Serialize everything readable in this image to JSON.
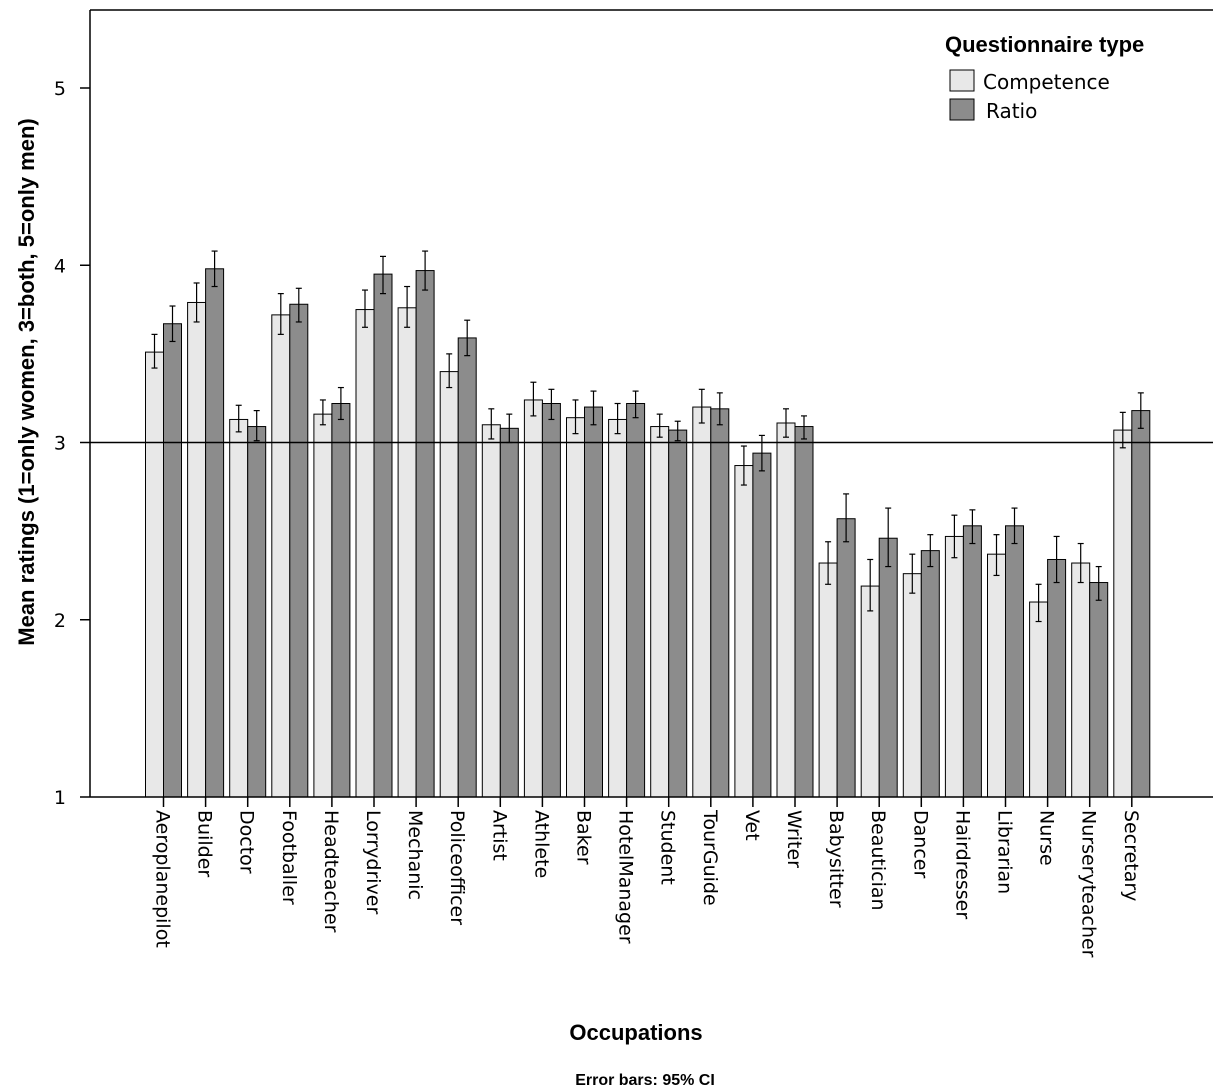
{
  "chart_data": {
    "type": "bar",
    "title": "",
    "xlabel": "Occupations",
    "ylabel": "Mean ratings (1=only women, 3=both, 5=only men)",
    "footnote": "Error bars: 95% CI",
    "ylim": [
      1,
      5.45
    ],
    "yticks": [
      1,
      2,
      3,
      4,
      5
    ],
    "reference_line": 3,
    "grid": false,
    "legend": {
      "title": "Questionnaire type",
      "placement": "top-right"
    },
    "categories": [
      "Aeroplanepilot",
      "Builder",
      "Doctor",
      "Footballer",
      "Headteacher",
      "Lorrydriver",
      "Mechanic",
      "Policeofficer",
      "Artist",
      "Athlete",
      "Baker",
      "HotelManager",
      "Student",
      "TourGuide",
      "Vet",
      "Writer",
      "Babysitter",
      "Beautician",
      "Dancer",
      "Hairdresser",
      "Librarian",
      "Nurse",
      "Nurseryteacher",
      "Secretary"
    ],
    "series": [
      {
        "name": "Competence",
        "color": "#e8e8e8",
        "values": [
          3.51,
          3.79,
          3.13,
          3.72,
          3.16,
          3.75,
          3.76,
          3.4,
          3.1,
          3.24,
          3.14,
          3.13,
          3.09,
          3.2,
          2.87,
          3.11,
          2.32,
          2.19,
          2.26,
          2.47,
          2.37,
          2.1,
          2.32,
          3.07
        ],
        "ci_low": [
          3.42,
          3.68,
          3.06,
          3.61,
          3.1,
          3.65,
          3.65,
          3.31,
          3.02,
          3.15,
          3.05,
          3.05,
          3.03,
          3.11,
          2.76,
          3.03,
          2.2,
          2.05,
          2.15,
          2.35,
          2.25,
          1.99,
          2.21,
          2.97
        ],
        "ci_high": [
          3.61,
          3.9,
          3.21,
          3.84,
          3.24,
          3.86,
          3.88,
          3.5,
          3.19,
          3.34,
          3.24,
          3.22,
          3.16,
          3.3,
          2.98,
          3.19,
          2.44,
          2.34,
          2.37,
          2.59,
          2.48,
          2.2,
          2.43,
          3.17
        ]
      },
      {
        "name": "Ratio",
        "color": "#8c8c8c",
        "values": [
          3.67,
          3.98,
          3.09,
          3.78,
          3.22,
          3.95,
          3.97,
          3.59,
          3.08,
          3.22,
          3.2,
          3.22,
          3.07,
          3.19,
          2.94,
          3.09,
          2.57,
          2.46,
          2.39,
          2.53,
          2.53,
          2.34,
          2.21,
          3.18
        ],
        "ci_low": [
          3.57,
          3.88,
          3.01,
          3.68,
          3.13,
          3.84,
          3.86,
          3.49,
          3.0,
          3.13,
          3.1,
          3.14,
          3.01,
          3.1,
          2.84,
          3.02,
          2.44,
          2.3,
          2.3,
          2.43,
          2.43,
          2.21,
          2.11,
          3.08
        ],
        "ci_high": [
          3.77,
          4.08,
          3.18,
          3.87,
          3.31,
          4.05,
          4.08,
          3.69,
          3.16,
          3.3,
          3.29,
          3.29,
          3.12,
          3.28,
          3.04,
          3.15,
          2.71,
          2.63,
          2.48,
          2.62,
          2.63,
          2.47,
          2.3,
          3.28
        ]
      }
    ]
  }
}
